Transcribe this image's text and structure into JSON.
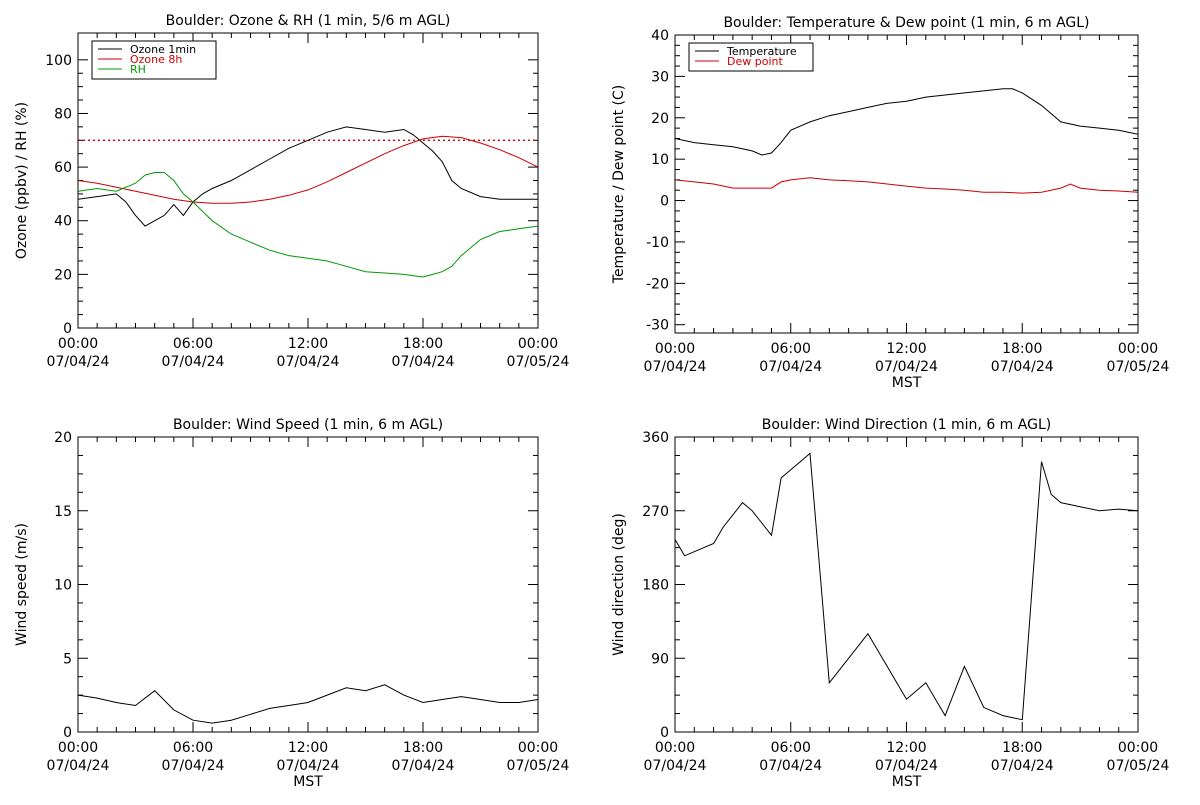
{
  "chart_data": [
    {
      "id": "ozone",
      "type": "line",
      "title": "Boulder: Ozone & RH (1 min, 5/6 m AGL)",
      "xlabel": "",
      "ylabel": "Ozone (ppbv) / RH (%)",
      "xlim": [
        0,
        24
      ],
      "ylim": [
        0,
        110
      ],
      "yticks": [
        0,
        20,
        40,
        60,
        80,
        100
      ],
      "xticks": [
        {
          "time": "00:00",
          "date": "07/04/24"
        },
        {
          "time": "06:00",
          "date": "07/04/24"
        },
        {
          "time": "12:00",
          "date": "07/04/24"
        },
        {
          "time": "18:00",
          "date": "07/04/24"
        },
        {
          "time": "00:00",
          "date": "07/05/24"
        }
      ],
      "legend_position": "top-left",
      "reference_line": {
        "y": 70,
        "color": "#cc0000",
        "style": "dotted"
      },
      "series": [
        {
          "name": "Ozone 1min",
          "color": "#000000",
          "x": [
            0,
            1,
            2,
            2.5,
            3,
            3.5,
            4,
            4.5,
            5,
            5.5,
            6,
            6.5,
            7,
            8,
            9,
            10,
            11,
            12,
            13,
            14,
            15,
            16,
            17,
            17.5,
            18,
            18.5,
            19,
            19.5,
            20,
            21,
            22,
            23,
            24
          ],
          "y": [
            48,
            49,
            50,
            47,
            42,
            38,
            40,
            42,
            46,
            42,
            47,
            50,
            52,
            55,
            59,
            63,
            67,
            70,
            73,
            75,
            74,
            73,
            74,
            72,
            69,
            66,
            62,
            55,
            52,
            49,
            48,
            48,
            48
          ]
        },
        {
          "name": "Ozone 8h",
          "color": "#cc0000",
          "x": [
            0,
            1,
            2,
            3,
            4,
            5,
            6,
            7,
            8,
            9,
            10,
            11,
            12,
            13,
            14,
            15,
            16,
            17,
            18,
            19,
            20,
            21,
            22,
            23,
            24
          ],
          "y": [
            55,
            54,
            52.5,
            51,
            49.5,
            48,
            47,
            46.5,
            46.5,
            47,
            48,
            49.5,
            51.5,
            54.5,
            58,
            61.5,
            65,
            68,
            70.5,
            71.5,
            71,
            69,
            66.5,
            63.5,
            60
          ]
        },
        {
          "name": "RH",
          "color": "#009900",
          "x": [
            0,
            1,
            2,
            3,
            3.5,
            4,
            4.5,
            5,
            5.5,
            6,
            7,
            8,
            9,
            10,
            11,
            12,
            13,
            14,
            15,
            16,
            17,
            17.5,
            18,
            18.5,
            19,
            19.5,
            20,
            21,
            22,
            23,
            24
          ],
          "y": [
            51,
            52,
            51,
            54,
            57,
            58,
            58,
            55,
            50,
            47,
            40,
            35,
            32,
            29,
            27,
            26,
            25,
            23,
            21,
            20.5,
            20,
            19.5,
            19,
            20,
            21,
            23,
            27,
            33,
            36,
            37,
            38
          ]
        }
      ]
    },
    {
      "id": "temperature",
      "type": "line",
      "title": "Boulder: Temperature & Dew point (1 min, 6 m AGL)",
      "xlabel": "MST",
      "ylabel": "Temperature / Dew point (C)",
      "xlim": [
        0,
        24
      ],
      "ylim": [
        -32,
        40
      ],
      "yticks": [
        -30,
        -20,
        -10,
        0,
        10,
        20,
        30,
        40
      ],
      "xticks": [
        {
          "time": "00:00",
          "date": "07/04/24"
        },
        {
          "time": "06:00",
          "date": "07/04/24"
        },
        {
          "time": "12:00",
          "date": "07/04/24"
        },
        {
          "time": "18:00",
          "date": "07/04/24"
        },
        {
          "time": "00:00",
          "date": "07/05/24"
        }
      ],
      "legend_position": "top-left",
      "series": [
        {
          "name": "Temperature",
          "color": "#000000",
          "x": [
            0,
            1,
            2,
            3,
            4,
            4.5,
            5,
            5.5,
            6,
            7,
            8,
            9,
            10,
            11,
            12,
            13,
            14,
            15,
            16,
            17,
            17.5,
            18,
            19,
            20,
            21,
            22,
            23,
            24
          ],
          "y": [
            15,
            14,
            13.5,
            13,
            12,
            11,
            11.5,
            14,
            17,
            19,
            20.5,
            21.5,
            22.5,
            23.5,
            24,
            25,
            25.5,
            26,
            26.5,
            27,
            27,
            26,
            23,
            19,
            18,
            17.5,
            17,
            16
          ]
        },
        {
          "name": "Dew point",
          "color": "#cc0000",
          "x": [
            0,
            1,
            2,
            3,
            4,
            5,
            5.5,
            6,
            7,
            8,
            9,
            10,
            11,
            12,
            13,
            14,
            15,
            16,
            17,
            18,
            19,
            20,
            20.5,
            21,
            22,
            23,
            24
          ],
          "y": [
            5,
            4.5,
            4,
            3,
            3,
            3,
            4.5,
            5,
            5.5,
            5,
            4.8,
            4.5,
            4,
            3.5,
            3,
            2.8,
            2.5,
            2,
            2,
            1.8,
            2,
            3,
            4,
            3,
            2.5,
            2.3,
            2
          ]
        }
      ]
    },
    {
      "id": "wind_speed",
      "type": "line",
      "title": "Boulder: Wind Speed (1 min, 6 m AGL)",
      "xlabel": "MST",
      "ylabel": "Wind speed (m/s)",
      "xlim": [
        0,
        24
      ],
      "ylim": [
        0,
        20
      ],
      "yticks": [
        0,
        5,
        10,
        15,
        20
      ],
      "xticks": [
        {
          "time": "00:00",
          "date": "07/04/24"
        },
        {
          "time": "06:00",
          "date": "07/04/24"
        },
        {
          "time": "12:00",
          "date": "07/04/24"
        },
        {
          "time": "18:00",
          "date": "07/04/24"
        },
        {
          "time": "00:00",
          "date": "07/05/24"
        }
      ],
      "series": [
        {
          "name": "",
          "color": "#000000",
          "x": [
            0,
            1,
            2,
            3,
            4,
            5,
            6,
            7,
            8,
            9,
            10,
            11,
            12,
            13,
            14,
            15,
            16,
            17,
            18,
            19,
            20,
            21,
            22,
            23,
            24
          ],
          "y": [
            2.5,
            2.3,
            2,
            1.8,
            2.8,
            1.5,
            0.8,
            0.6,
            0.8,
            1.2,
            1.6,
            1.8,
            2,
            2.5,
            3,
            2.8,
            3.2,
            2.5,
            2,
            2.2,
            2.4,
            2.2,
            2,
            2,
            2.2
          ]
        }
      ]
    },
    {
      "id": "wind_direction",
      "type": "line",
      "title": "Boulder: Wind Direction (1 min, 6 m AGL)",
      "xlabel": "MST",
      "ylabel": "Wind direction (deg)",
      "xlim": [
        0,
        24
      ],
      "ylim": [
        0,
        360
      ],
      "yticks": [
        0,
        90,
        180,
        270,
        360
      ],
      "xticks": [
        {
          "time": "00:00",
          "date": "07/04/24"
        },
        {
          "time": "06:00",
          "date": "07/04/24"
        },
        {
          "time": "12:00",
          "date": "07/04/24"
        },
        {
          "time": "18:00",
          "date": "07/04/24"
        },
        {
          "time": "00:00",
          "date": "07/05/24"
        }
      ],
      "series": [
        {
          "name": "",
          "color": "#000000",
          "x": [
            0,
            0.5,
            1,
            1.5,
            2,
            2.5,
            3,
            3.5,
            4,
            4.5,
            5,
            5.5,
            6,
            6.5,
            7,
            8,
            9,
            10,
            11,
            12,
            13,
            14,
            15,
            16,
            17,
            18,
            19,
            19.5,
            20,
            21,
            22,
            23,
            24
          ],
          "y": [
            235,
            215,
            220,
            225,
            230,
            250,
            265,
            280,
            270,
            255,
            240,
            310,
            320,
            330,
            340,
            60,
            90,
            120,
            80,
            40,
            60,
            20,
            80,
            30,
            20,
            15,
            330,
            290,
            280,
            275,
            270,
            272,
            270
          ]
        }
      ]
    }
  ]
}
